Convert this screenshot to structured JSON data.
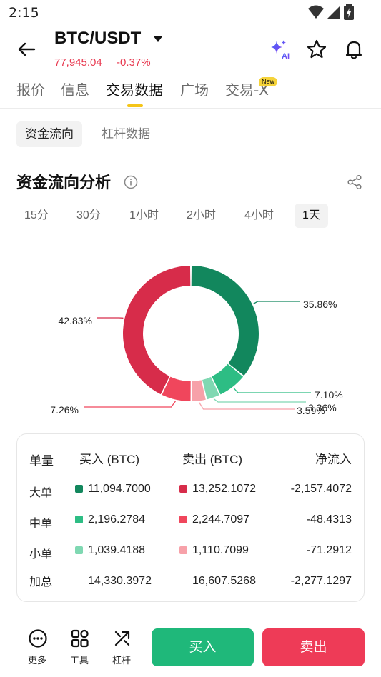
{
  "status_bar": {
    "time": "2:15"
  },
  "header": {
    "pair": "BTC/USDT",
    "price": "77,945.04",
    "change": "-0.37%",
    "ai_badge": "AI"
  },
  "tabs": [
    {
      "label": "报价",
      "active": false
    },
    {
      "label": "信息",
      "active": false
    },
    {
      "label": "交易数据",
      "active": true
    },
    {
      "label": "广场",
      "active": false
    },
    {
      "label": "交易-X",
      "active": false,
      "badge": "New"
    }
  ],
  "subtabs": [
    {
      "label": "资金流向",
      "active": true
    },
    {
      "label": "杠杆数据",
      "active": false
    }
  ],
  "section": {
    "title": "资金流向分析"
  },
  "timeframes": [
    {
      "label": "15分",
      "active": false
    },
    {
      "label": "30分",
      "active": false
    },
    {
      "label": "1小时",
      "active": false
    },
    {
      "label": "2小时",
      "active": false
    },
    {
      "label": "4小时",
      "active": false
    },
    {
      "label": "1天",
      "active": true
    }
  ],
  "chart_data": {
    "type": "pie",
    "slices": [
      {
        "label": "35.86%",
        "value": 35.86,
        "color": "#12875d"
      },
      {
        "label": "7.10%",
        "value": 7.1,
        "color": "#2dbd84"
      },
      {
        "label": "3.36%",
        "value": 3.36,
        "color": "#7fd8b2"
      },
      {
        "label": "3.59%",
        "value": 3.59,
        "color": "#f7a1a9"
      },
      {
        "label": "7.26%",
        "value": 7.26,
        "color": "#f0465c"
      },
      {
        "label": "42.83%",
        "value": 42.83,
        "color": "#d72c4a"
      }
    ]
  },
  "table": {
    "headers": {
      "size": "单量",
      "buy": "买入 (BTC)",
      "sell": "卖出 (BTC)",
      "net": "净流入"
    },
    "rows": [
      {
        "label": "大单",
        "buy": "11,094.7000",
        "sell": "13,252.1072",
        "net": "-2,157.4072",
        "buy_color": "#12875d",
        "sell_color": "#d72c4a"
      },
      {
        "label": "中单",
        "buy": "2,196.2784",
        "sell": "2,244.7097",
        "net": "-48.4313",
        "buy_color": "#2dbd84",
        "sell_color": "#f0465c"
      },
      {
        "label": "小单",
        "buy": "1,039.4188",
        "sell": "1,110.7099",
        "net": "-71.2912",
        "buy_color": "#7fd8b2",
        "sell_color": "#f7a1a9"
      }
    ],
    "total": {
      "label": "加总",
      "buy": "14,330.3972",
      "sell": "16,607.5268",
      "net": "-2,277.1297"
    }
  },
  "bottom_bar": {
    "more": "更多",
    "tools": "工具",
    "leverage": "杠杆",
    "buy": "买入",
    "sell": "卖出"
  }
}
